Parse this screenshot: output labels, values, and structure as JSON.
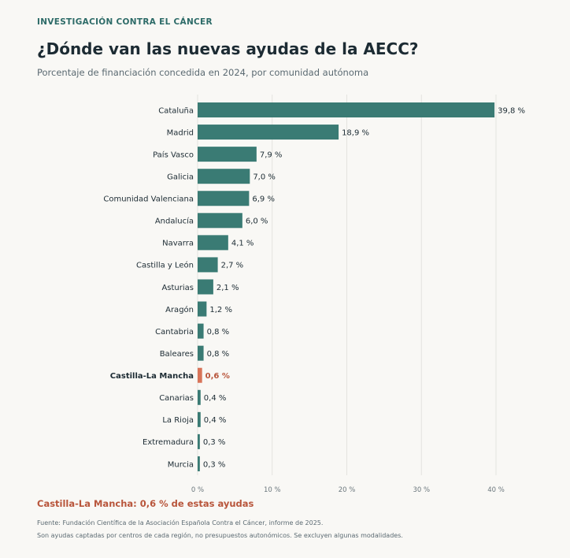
{
  "header": {
    "kicker": "INVESTIGACIÓN CONTRA EL CÁNCER",
    "title": "¿Dónde van las nuevas ayudas de la AECC?",
    "subtitle": "Porcentaje de financiación concedida en 2024, por comunidad autónoma"
  },
  "chart_data": {
    "type": "bar",
    "orientation": "horizontal",
    "title": "",
    "xlabel": "",
    "ylabel": "",
    "categories": [
      "Cataluña",
      "Madrid",
      "País Vasco",
      "Galicia",
      "Comunidad Valenciana",
      "Andalucía",
      "Navarra",
      "Castilla y León",
      "Asturias",
      "Aragón",
      "Cantabria",
      "Baleares",
      "Castilla-La Mancha",
      "Canarias",
      "La Rioja",
      "Extremadura",
      "Murcia"
    ],
    "values": [
      39.8,
      18.9,
      7.9,
      7.0,
      6.9,
      6.0,
      4.1,
      2.7,
      2.1,
      1.2,
      0.8,
      0.8,
      0.6,
      0.4,
      0.4,
      0.3,
      0.3
    ],
    "value_labels": [
      "39,8 %",
      "18,9 %",
      "7,9 %",
      "7,0 %",
      "6,9 %",
      "6,0 %",
      "4,1 %",
      "2,7 %",
      "2,1 %",
      "1,2 %",
      "0,8 %",
      "0,8 %",
      "0,6 %",
      "0,4 %",
      "0,4 %",
      "0,3 %",
      "0,3 %"
    ],
    "highlight": "Castilla-La Mancha",
    "xlim": [
      0,
      40
    ],
    "xticks": [
      0,
      10,
      20,
      30,
      40
    ],
    "xtick_labels": [
      "0 %",
      "10 %",
      "20 %",
      "30 %",
      "40 %"
    ],
    "grid": true,
    "colors": {
      "bar": "#3a7b74",
      "highlight": "#d87459",
      "highlight_text": "#b8553b",
      "grid": "#e4e3df",
      "label": "#1c2b33",
      "tick": "#6b777d"
    }
  },
  "footer": {
    "highlight_note": "Castilla-La Mancha: 0,6 % de estas ayudas",
    "source": "Fuente: Fundación Científica de la Asociación Española Contra el Cáncer, informe de 2025.",
    "note": "Son ayudas captadas por centros de cada región, no presupuestos autonómicos. Se excluyen algunas modalidades."
  }
}
